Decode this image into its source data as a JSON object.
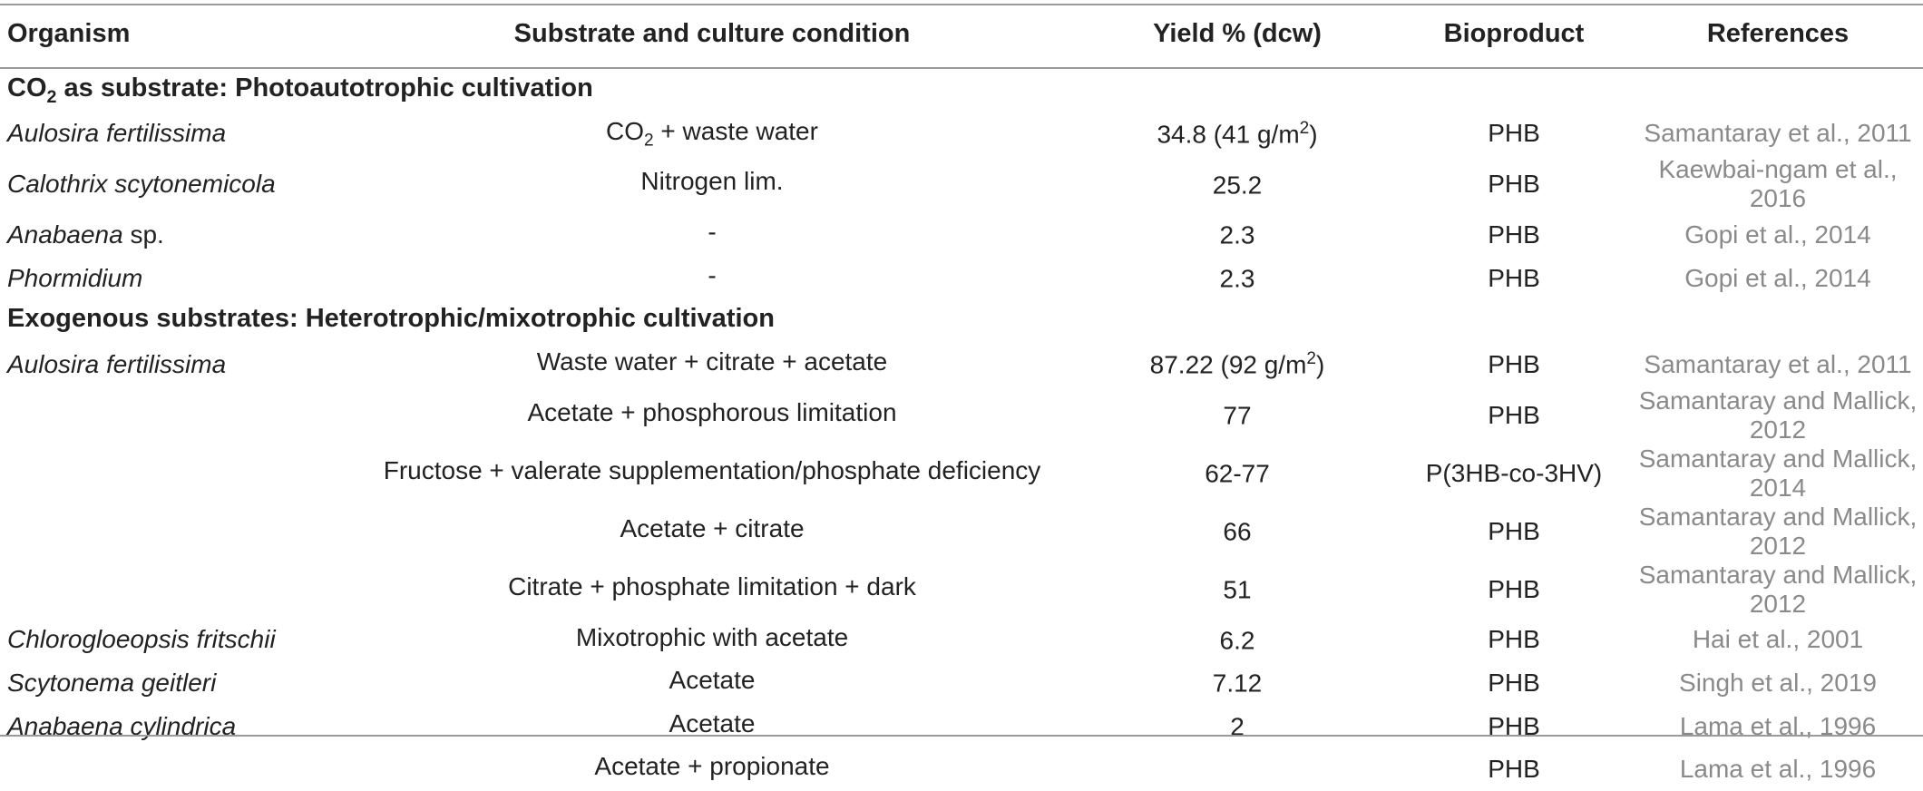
{
  "headers": {
    "organism": "Organism",
    "substrate": "Substrate and culture condition",
    "yield": "Yield % (dcw)",
    "bioproduct": "Bioproduct",
    "references": "References"
  },
  "sections": [
    {
      "title_pre": "CO",
      "title_sub": "2",
      "title_post": " as substrate: Photoautotrophic cultivation",
      "rows": [
        {
          "organism": "Aulosira fertilissima",
          "organism_suffix": "",
          "substrate_pre": "CO",
          "substrate_sub": "2",
          "substrate_post": " + waste water",
          "yield_pre": "34.8 (41 g/m",
          "yield_sup": "2",
          "yield_post": ")",
          "bioproduct": "PHB",
          "reference": "Samantaray et al., 2011"
        },
        {
          "organism": "Calothrix scytonemicola",
          "organism_suffix": "",
          "substrate_pre": "Nitrogen lim.",
          "substrate_sub": "",
          "substrate_post": "",
          "yield_pre": "25.2",
          "yield_sup": "",
          "yield_post": "",
          "bioproduct": "PHB",
          "reference": "Kaewbai-ngam et al., 2016"
        },
        {
          "organism": "Anabaena",
          "organism_suffix": " sp.",
          "substrate_pre": "-",
          "substrate_sub": "",
          "substrate_post": "",
          "yield_pre": "2.3",
          "yield_sup": "",
          "yield_post": "",
          "bioproduct": "PHB",
          "reference": "Gopi et al., 2014"
        },
        {
          "organism": "Phormidium",
          "organism_suffix": "",
          "substrate_pre": "-",
          "substrate_sub": "",
          "substrate_post": "",
          "yield_pre": "2.3",
          "yield_sup": "",
          "yield_post": "",
          "bioproduct": "PHB",
          "reference": "Gopi et al., 2014"
        }
      ]
    },
    {
      "title_pre": "Exogenous substrates: Heterotrophic/mixotrophic cultivation",
      "title_sub": "",
      "title_post": "",
      "rows": [
        {
          "organism": "Aulosira fertilissima",
          "organism_suffix": "",
          "substrate_pre": "Waste water + citrate + acetate",
          "substrate_sub": "",
          "substrate_post": "",
          "yield_pre": "87.22 (92 g/m",
          "yield_sup": "2",
          "yield_post": ")",
          "bioproduct": "PHB",
          "reference": "Samantaray et al., 2011"
        },
        {
          "organism": "",
          "organism_suffix": "",
          "substrate_pre": "Acetate + phosphorous limitation",
          "substrate_sub": "",
          "substrate_post": "",
          "yield_pre": "77",
          "yield_sup": "",
          "yield_post": "",
          "bioproduct": "PHB",
          "reference": "Samantaray and Mallick, 2012"
        },
        {
          "organism": "",
          "organism_suffix": "",
          "substrate_pre": "Fructose + valerate supplementation/phosphate deficiency",
          "substrate_sub": "",
          "substrate_post": "",
          "yield_pre": "62-77",
          "yield_sup": "",
          "yield_post": "",
          "bioproduct": "P(3HB-co-3HV)",
          "reference": "Samantaray and Mallick, 2014"
        },
        {
          "organism": "",
          "organism_suffix": "",
          "substrate_pre": "Acetate + citrate",
          "substrate_sub": "",
          "substrate_post": "",
          "yield_pre": "66",
          "yield_sup": "",
          "yield_post": "",
          "bioproduct": "PHB",
          "reference": "Samantaray and Mallick, 2012"
        },
        {
          "organism": "",
          "organism_suffix": "",
          "substrate_pre": "Citrate + phosphate limitation + dark",
          "substrate_sub": "",
          "substrate_post": "",
          "yield_pre": "51",
          "yield_sup": "",
          "yield_post": "",
          "bioproduct": "PHB",
          "reference": "Samantaray and Mallick, 2012"
        },
        {
          "organism": "Chlorogloeopsis fritschii",
          "organism_suffix": "",
          "substrate_pre": "Mixotrophic with acetate",
          "substrate_sub": "",
          "substrate_post": "",
          "yield_pre": "6.2",
          "yield_sup": "",
          "yield_post": "",
          "bioproduct": "PHB",
          "reference": "Hai et al., 2001"
        },
        {
          "organism": "Scytonema geitleri",
          "organism_suffix": "",
          "substrate_pre": "Acetate",
          "substrate_sub": "",
          "substrate_post": "",
          "yield_pre": "7.12",
          "yield_sup": "",
          "yield_post": "",
          "bioproduct": "PHB",
          "reference": "Singh et al., 2019"
        },
        {
          "organism": "Anabaena cylindrica",
          "organism_suffix": "",
          "substrate_pre": "Acetate",
          "substrate_sub": "",
          "substrate_post": "",
          "yield_pre": "2",
          "yield_sup": "",
          "yield_post": "",
          "bioproduct": "PHB",
          "reference": "Lama et al., 1996"
        },
        {
          "organism": "",
          "organism_suffix": "",
          "substrate_pre": "Acetate + propionate",
          "substrate_sub": "",
          "substrate_post": "",
          "yield_pre": "",
          "yield_sup": "",
          "yield_post": "",
          "bioproduct": "PHB",
          "reference": "Lama et al., 1996"
        }
      ]
    }
  ]
}
